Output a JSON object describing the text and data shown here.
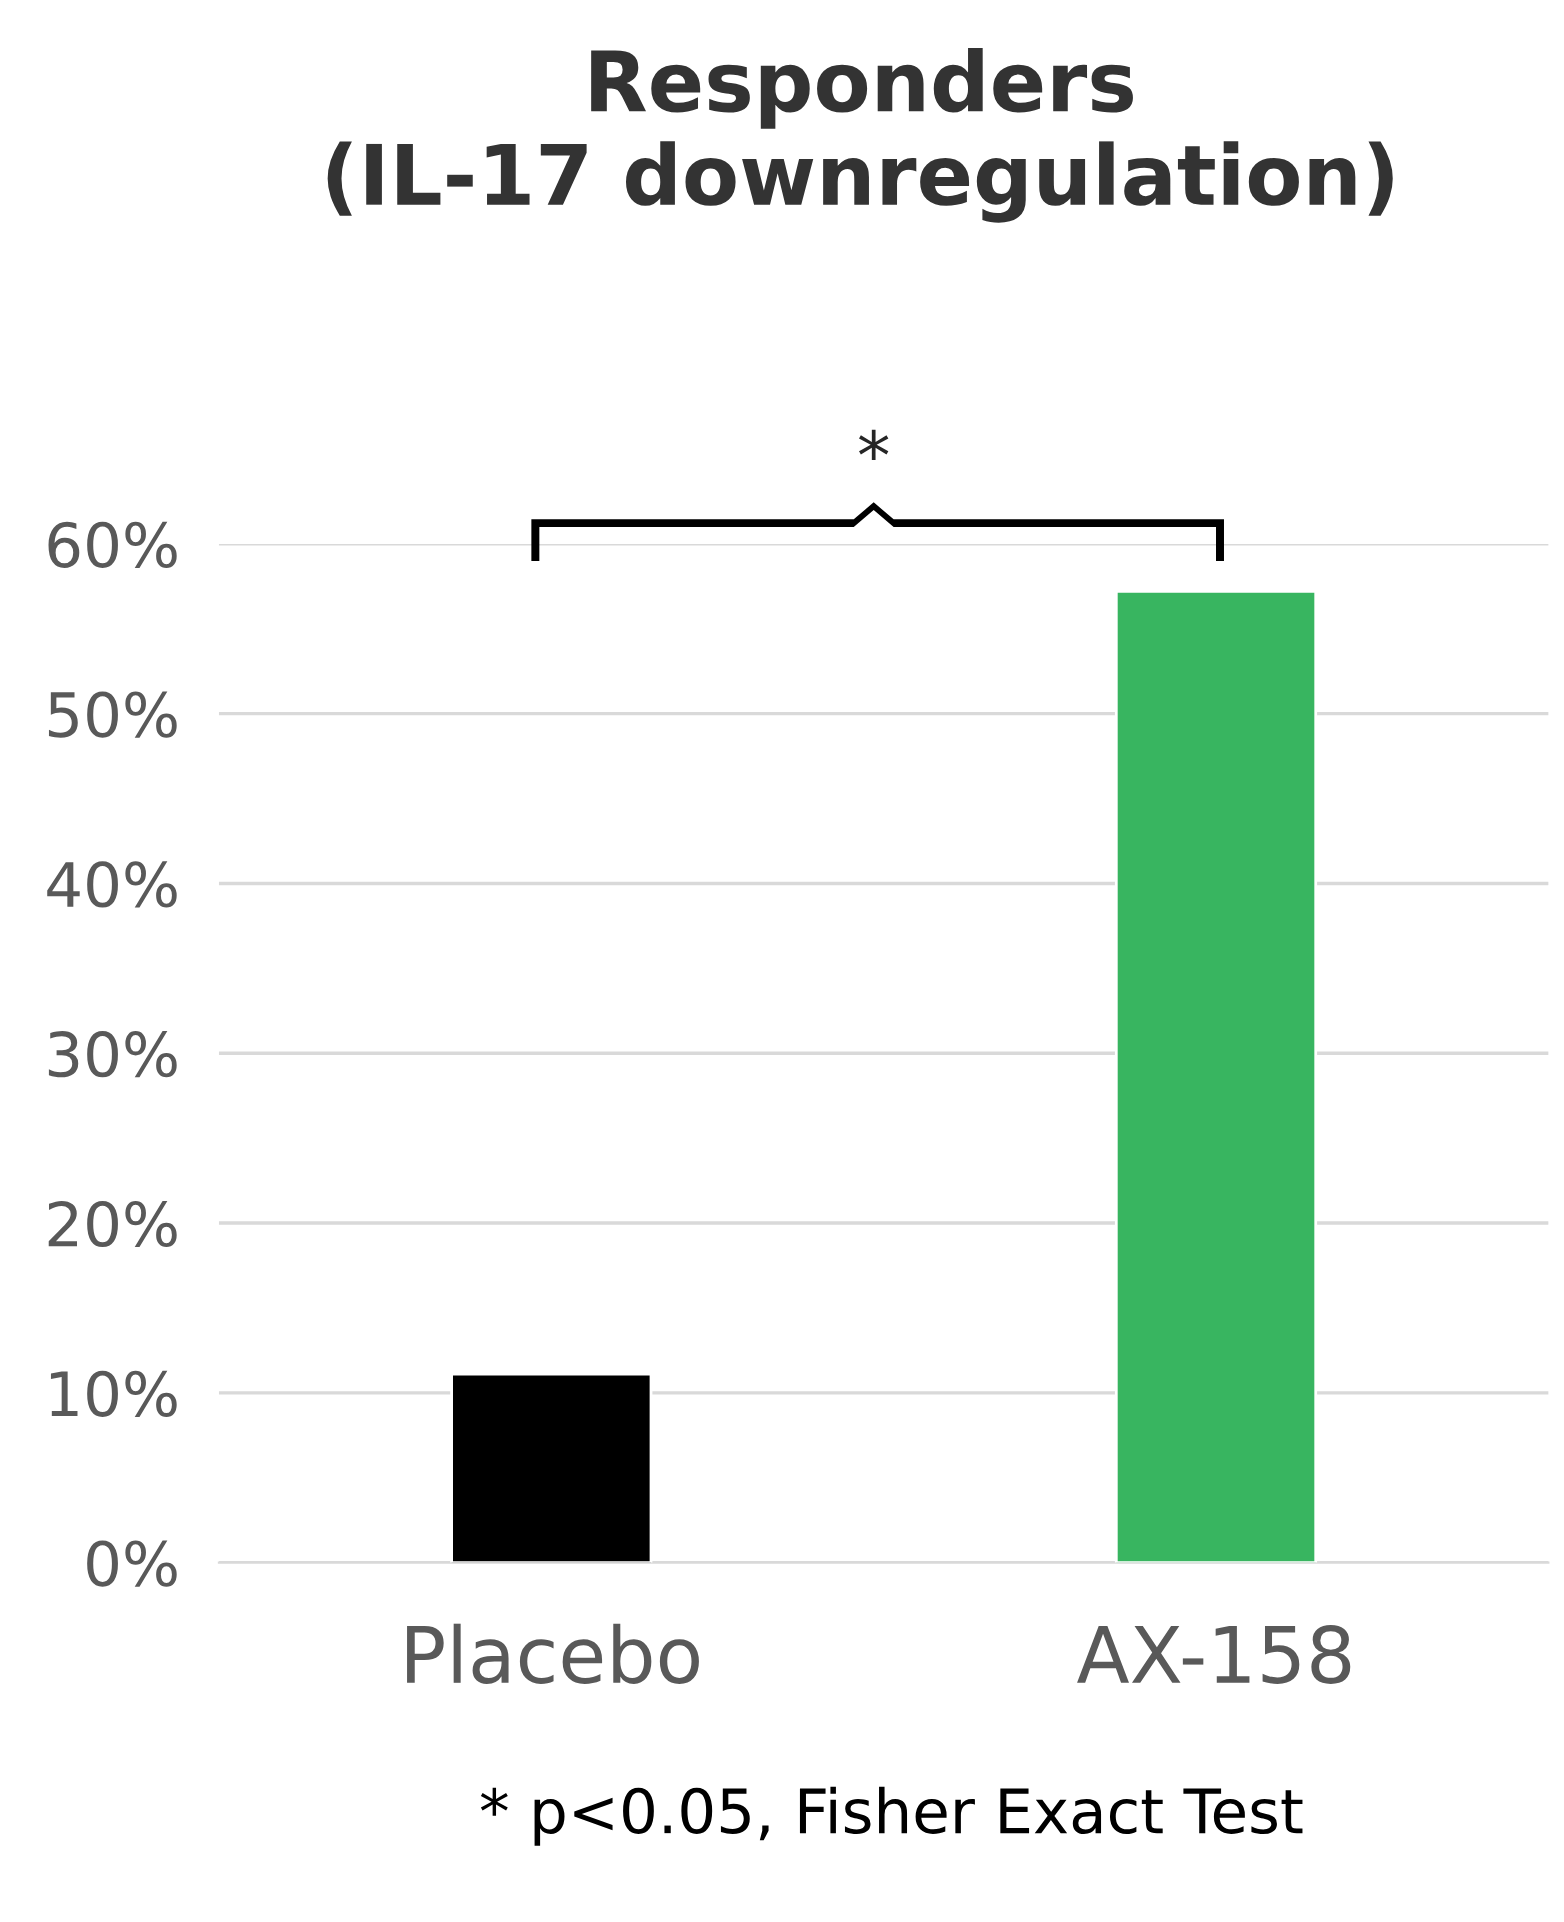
{
  "chart_data": {
    "type": "bar",
    "title": "Responders\n(IL-17 downregulation)",
    "categories": [
      "Placebo",
      "AX-158"
    ],
    "values": [
      11.1,
      57.2
    ],
    "colors": [
      "#000000",
      "#38b560"
    ],
    "ylim": [
      0,
      60
    ],
    "yticks": [
      {
        "value": 0,
        "label": "0%"
      },
      {
        "value": 10,
        "label": "10%"
      },
      {
        "value": 20,
        "label": "20%"
      },
      {
        "value": 30,
        "label": "30%"
      },
      {
        "value": 40,
        "label": "40%"
      },
      {
        "value": 50,
        "label": "50%"
      },
      {
        "value": 60,
        "label": "60%"
      }
    ],
    "grid": "y",
    "annotations": [
      "*",
      "* p<0.05, Fisher Exact Test"
    ]
  }
}
